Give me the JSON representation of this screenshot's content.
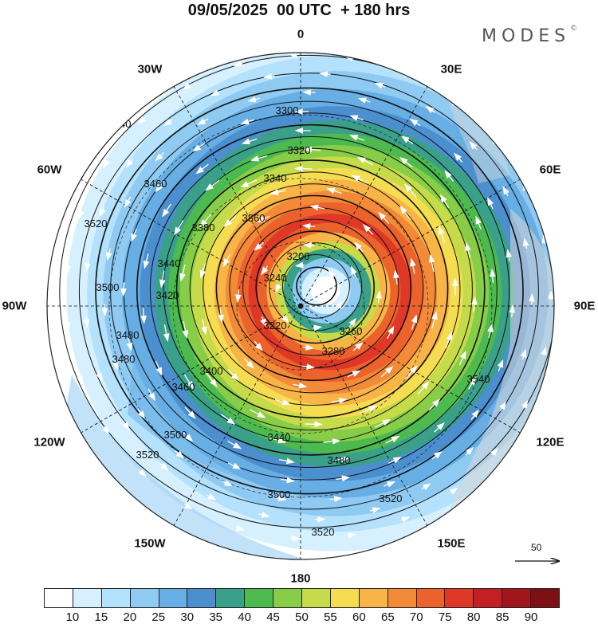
{
  "title": "09/05/2025  00 UTC  + 180 hrs",
  "logo": {
    "text": "MODES",
    "mark": "©"
  },
  "lon_labels": [
    {
      "key": "n",
      "text": "0"
    },
    {
      "key": "s",
      "text": "180"
    },
    {
      "key": "w",
      "text": "90W"
    },
    {
      "key": "e",
      "text": "90E"
    },
    {
      "key": "w30",
      "text": "30W"
    },
    {
      "key": "e30",
      "text": "30E"
    },
    {
      "key": "w60",
      "text": "60W"
    },
    {
      "key": "e60",
      "text": "60E"
    },
    {
      "key": "w120",
      "text": "120W"
    },
    {
      "key": "e120",
      "text": "120E"
    },
    {
      "key": "w150",
      "text": "150W"
    },
    {
      "key": "e150",
      "text": "150E"
    }
  ],
  "contour_labels": [
    "3540",
    "3520",
    "3500",
    "3480",
    "3460",
    "3440",
    "3420",
    "3400",
    "3380",
    "3360",
    "3340",
    "3320",
    "3300",
    "3280",
    "3260",
    "3240",
    "3220",
    "3200"
  ],
  "reference_vector": {
    "label": "50"
  },
  "colorbar": {
    "labels": [
      "10",
      "15",
      "20",
      "25",
      "30",
      "35",
      "40",
      "45",
      "50",
      "55",
      "60",
      "65",
      "70",
      "75",
      "80",
      "85",
      "90"
    ],
    "colors": [
      "#ffffff",
      "#d6f0ff",
      "#b4e1fb",
      "#8ecaf2",
      "#66aee4",
      "#4b8fcf",
      "#3aa08a",
      "#4dba50",
      "#87cd48",
      "#c5db4a",
      "#f5dd52",
      "#f8b446",
      "#f28a38",
      "#ec622d",
      "#df3826",
      "#c41f22",
      "#a0161c",
      "#7c1014"
    ]
  },
  "map_colors": {
    "land": "#d8d8d8",
    "outline": "#222222"
  }
}
